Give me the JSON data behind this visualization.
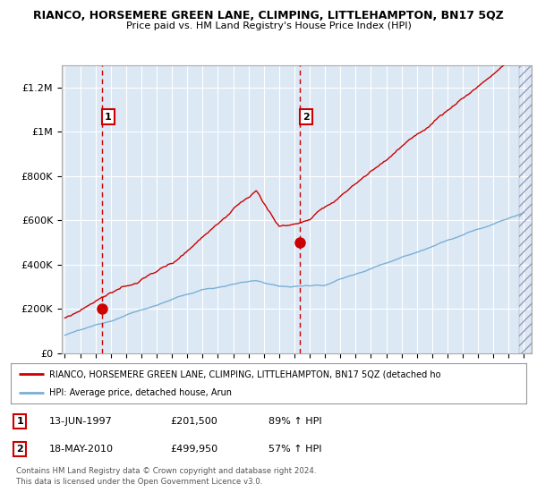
{
  "title": "RIANCO, HORSEMERE GREEN LANE, CLIMPING, LITTLEHAMPTON, BN17 5QZ",
  "subtitle": "Price paid vs. HM Land Registry's House Price Index (HPI)",
  "bg_color": "#dce9f5",
  "grid_color": "#ffffff",
  "ylim": [
    0,
    1300000
  ],
  "yticks": [
    0,
    200000,
    400000,
    600000,
    800000,
    1000000,
    1200000
  ],
  "ytick_labels": [
    "£0",
    "£200K",
    "£400K",
    "£600K",
    "£800K",
    "£1M",
    "£1.2M"
  ],
  "red_line_color": "#cc0000",
  "blue_line_color": "#7bafd4",
  "marker1_date": 1997.45,
  "marker1_value": 201500,
  "marker2_date": 2010.38,
  "marker2_value": 499950,
  "vline_color": "#cc0000",
  "legend_red_label": "RIANCO, HORSEMERE GREEN LANE, CLIMPING, LITTLEHAMPTON, BN17 5QZ (detached ho",
  "legend_blue_label": "HPI: Average price, detached house, Arun",
  "table_row1": [
    "1",
    "13-JUN-1997",
    "£201,500",
    "89% ↑ HPI"
  ],
  "table_row2": [
    "2",
    "18-MAY-2010",
    "£499,950",
    "57% ↑ HPI"
  ],
  "footnote": "Contains HM Land Registry data © Crown copyright and database right 2024.\nThis data is licensed under the Open Government Licence v3.0."
}
